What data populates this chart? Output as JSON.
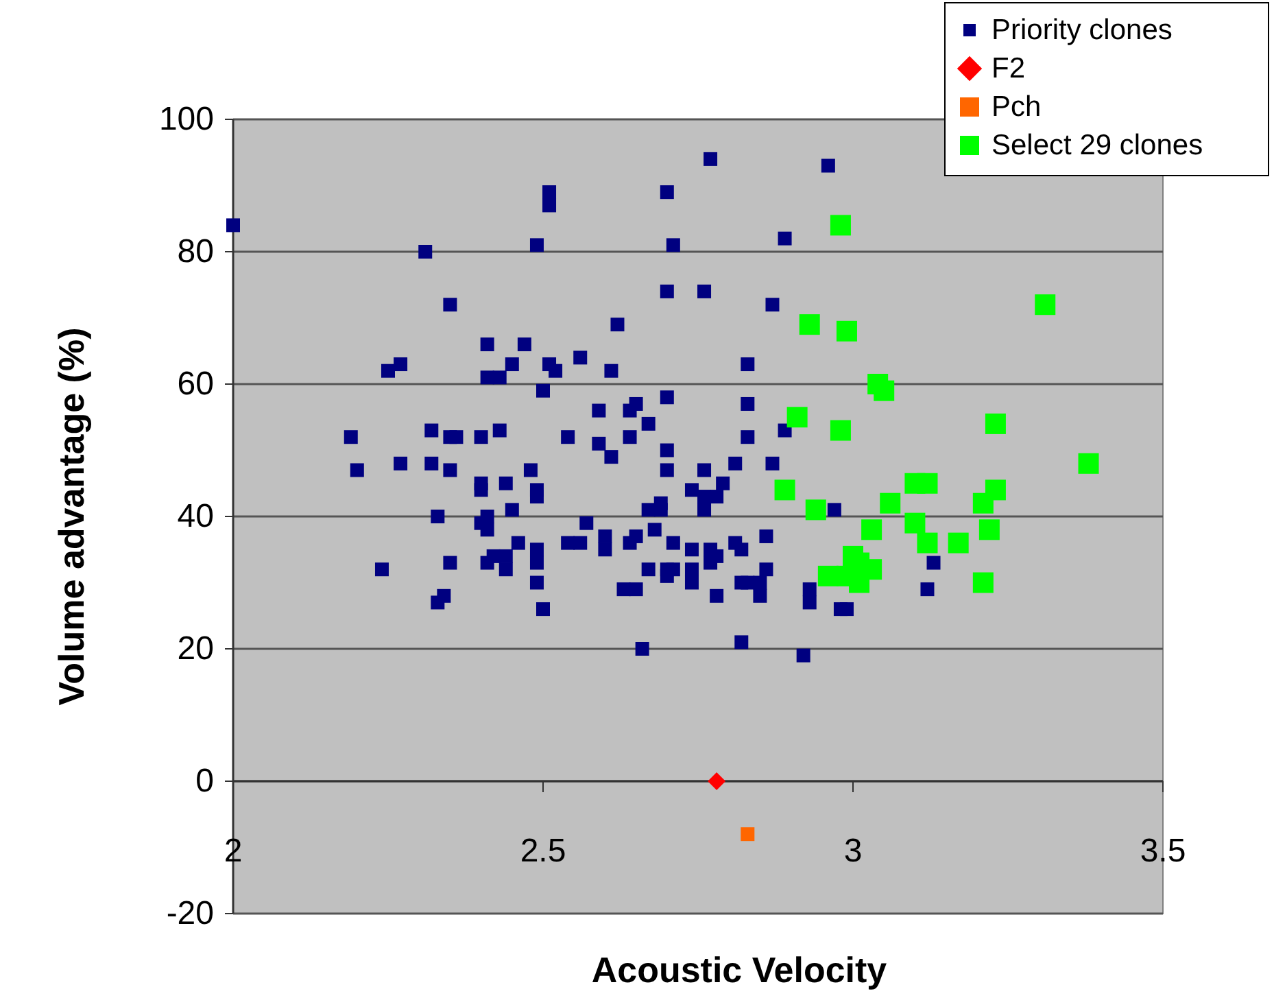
{
  "chart_data": {
    "type": "scatter",
    "xlabel": "Acoustic Velocity",
    "ylabel": "Volume advantage (%)",
    "xlim": [
      2,
      3.5
    ],
    "xticks": [
      2,
      2.5,
      3,
      3.5
    ],
    "ylim": [
      -20,
      100
    ],
    "yticks": [
      -20,
      0,
      20,
      40,
      60,
      80,
      100
    ],
    "grid": "y",
    "legend": "top right",
    "series": [
      {
        "name": "Priority clones",
        "color": "#000080",
        "marker": "square",
        "x": [
          2.5,
          2.59,
          2.64,
          2.65,
          2.7,
          2.83,
          2.89,
          2.54,
          2.59,
          2.61,
          2.64,
          2.67,
          2.7,
          2.83,
          2.87,
          2.7,
          2.76,
          2.81,
          2.79,
          2.74,
          2.76,
          2.78,
          2.76,
          2.69,
          2.69,
          2.67,
          2.68,
          2.57,
          2.97,
          2.49,
          2.49,
          2.49,
          2.49,
          2.5,
          2.54,
          2.56,
          2.6,
          2.6,
          2.64,
          2.65,
          2.71,
          2.74,
          2.77,
          2.78,
          2.81,
          2.82,
          2.86,
          2.77,
          2.67,
          2.7,
          2.71,
          2.7,
          2.74,
          2.74,
          2.63,
          2.65,
          2.78,
          2.82,
          2.83,
          2.85,
          2.86,
          2.85,
          2.93,
          2.93,
          2.98,
          2.99,
          2.66,
          2.82,
          2.92,
          2.19,
          2.2,
          2.27,
          2.32,
          2.35,
          2.32,
          2.36,
          2.35,
          2.4,
          2.43,
          2.4,
          2.4,
          2.44,
          2.48,
          2.49,
          2.33,
          2.41,
          2.4,
          2.41,
          2.45,
          2.46,
          2.42,
          2.44,
          2.41,
          2.44,
          2.35,
          2.24,
          2.34,
          2.33,
          2.0,
          2.31,
          2.35,
          2.41,
          2.47,
          2.27,
          2.25,
          2.45,
          2.41,
          2.43,
          2.49,
          2.51,
          2.51,
          2.51,
          2.77,
          2.96,
          2.7,
          2.89,
          2.71,
          2.7,
          2.76,
          2.87,
          2.62,
          2.56,
          2.52,
          2.61,
          2.83,
          3.13,
          3.12
        ],
        "values": [
          59,
          56,
          56,
          57,
          58,
          57,
          53,
          52,
          51,
          49,
          52,
          54,
          50,
          52,
          48,
          47,
          47,
          48,
          45,
          44,
          43,
          43,
          41,
          42,
          41,
          41,
          38,
          39,
          41,
          44,
          35,
          33,
          30,
          26,
          36,
          36,
          37,
          35,
          36,
          37,
          36,
          35,
          35,
          34,
          36,
          35,
          37,
          33,
          32,
          32,
          32,
          31,
          32,
          30,
          29,
          29,
          28,
          30,
          30,
          30,
          32,
          28,
          29,
          27,
          26,
          26,
          20,
          21,
          19,
          52,
          47,
          48,
          48,
          47,
          53,
          52,
          52,
          52,
          53,
          45,
          44,
          45,
          47,
          43,
          40,
          40,
          39,
          38,
          41,
          36,
          34,
          34,
          33,
          32,
          33,
          32,
          28,
          27,
          84,
          80,
          72,
          66,
          66,
          63,
          62,
          63,
          61,
          61,
          81,
          89,
          87,
          63,
          94,
          93,
          89,
          82,
          81,
          74,
          74,
          72,
          69,
          64,
          62,
          62,
          63,
          33,
          29
        ]
      },
      {
        "name": "F2",
        "color": "#ff0000",
        "marker": "diamond",
        "x": [
          2.78
        ],
        "values": [
          0
        ]
      },
      {
        "name": "Pch",
        "color": "#ff6600",
        "marker": "square",
        "x": [
          2.83
        ],
        "values": [
          -8
        ]
      },
      {
        "name": "Select 29 clones",
        "color": "#00ff00",
        "marker": "square",
        "x": [
          2.98,
          2.93,
          2.99,
          3.31,
          3.04,
          3.05,
          2.91,
          2.98,
          3.23,
          3.38,
          2.89,
          2.94,
          3.06,
          3.1,
          3.12,
          3.23,
          3.21,
          3.1,
          3.03,
          3.22,
          3.12,
          3.17,
          3.0,
          3.03,
          2.96,
          2.99,
          3.01,
          3.21,
          3.01
        ],
        "values": [
          84,
          69,
          68,
          72,
          60,
          59,
          55,
          53,
          54,
          48,
          44,
          41,
          42,
          45,
          45,
          44,
          42,
          39,
          38,
          38,
          36,
          36,
          34,
          32,
          31,
          31,
          30,
          30,
          33
        ]
      }
    ]
  }
}
